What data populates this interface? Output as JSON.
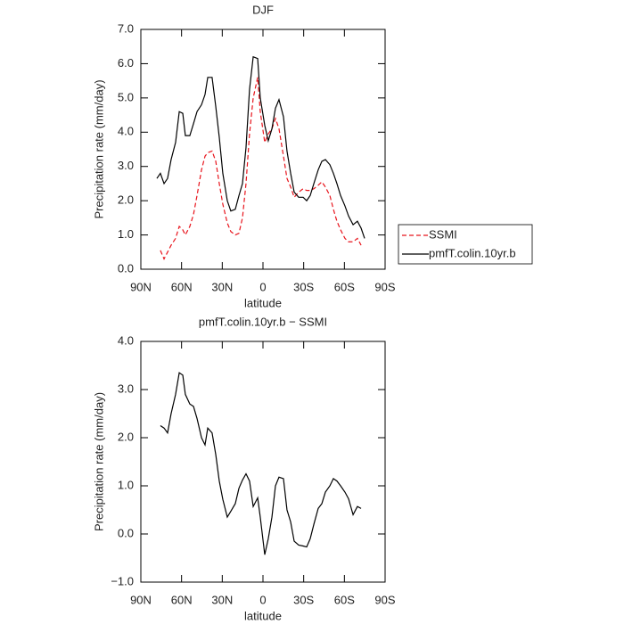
{
  "chart_data": [
    {
      "type": "line",
      "title": "DJF",
      "xlabel": "latitude",
      "ylabel": "Precipitation rate (mm/day)",
      "xlim": [
        90,
        -90
      ],
      "ylim": [
        0,
        7
      ],
      "xticks": [
        {
          "value": 90,
          "label": "90N"
        },
        {
          "value": 60,
          "label": "60N"
        },
        {
          "value": 30,
          "label": "30N"
        },
        0,
        {
          "value": -30,
          "label": "30S"
        },
        {
          "value": -60,
          "label": "60S"
        },
        {
          "value": -90,
          "label": "90S"
        }
      ],
      "yticks": [
        {
          "value": 0,
          "label": "0.0"
        },
        {
          "value": 1,
          "label": "1.0"
        },
        {
          "value": 2,
          "label": "2.0"
        },
        {
          "value": 3,
          "label": "3.0"
        },
        {
          "value": 4,
          "label": "4.0"
        },
        {
          "value": 5,
          "label": "5.0"
        },
        {
          "value": 6,
          "label": "6.0"
        },
        {
          "value": 7,
          "label": "7.0"
        }
      ],
      "legend": "right",
      "x": [
        78.2,
        75.6,
        72.9,
        70.3,
        67.7,
        64.4,
        61.7,
        59.1,
        57.2,
        53.9,
        51.2,
        48.6,
        45.3,
        42.7,
        40.7,
        37.5,
        34.8,
        32.2,
        29.6,
        26.3,
        23.7,
        20.4,
        17.7,
        15.1,
        12.5,
        9.9,
        7.2,
        3.9,
        2.0,
        -1.3,
        -3.9,
        -6.6,
        -9.2,
        -11.8,
        -15.1,
        -17.7,
        -20.4,
        -23.0,
        -26.3,
        -29.6,
        -32.2,
        -34.8,
        -37.5,
        -40.7,
        -43.4,
        -46.0,
        -49.3,
        -51.9,
        -54.5,
        -57.2,
        -60.4,
        -63.1,
        -66.4,
        -69.6,
        -72.3,
        -74.9
      ],
      "series": [
        {
          "name": "SSMI",
          "color": "#e8141c",
          "linestyle": "dashed",
          "values": [
            null,
            0.55,
            0.3,
            0.5,
            0.7,
            0.9,
            1.25,
            1.15,
            1.0,
            1.25,
            1.6,
            2.15,
            2.9,
            3.3,
            3.4,
            3.45,
            3.15,
            2.5,
            1.9,
            1.35,
            1.1,
            1.0,
            1.05,
            1.5,
            2.5,
            3.95,
            5.0,
            5.6,
            4.6,
            3.7,
            3.95,
            4.1,
            4.4,
            4.1,
            3.3,
            2.65,
            2.4,
            2.1,
            2.25,
            2.35,
            2.3,
            2.3,
            2.35,
            2.45,
            2.55,
            2.4,
            2.15,
            1.75,
            1.4,
            1.15,
            0.9,
            0.8,
            0.8,
            0.9,
            0.7,
            null
          ]
        },
        {
          "name": "pmfT.colin.10yr.b",
          "color": "#000000",
          "linestyle": "solid",
          "values": [
            2.65,
            2.8,
            2.5,
            2.65,
            3.2,
            3.7,
            4.6,
            4.55,
            3.9,
            3.9,
            4.25,
            4.6,
            4.8,
            5.1,
            5.6,
            5.6,
            4.75,
            3.85,
            2.8,
            2.0,
            1.7,
            1.75,
            2.15,
            2.5,
            3.55,
            5.25,
            6.2,
            6.15,
            5.0,
            4.2,
            3.75,
            4.1,
            4.7,
            4.95,
            4.45,
            3.45,
            2.8,
            2.25,
            2.1,
            2.1,
            2.0,
            2.15,
            2.5,
            2.9,
            3.15,
            3.2,
            3.05,
            2.8,
            2.5,
            2.15,
            1.85,
            1.55,
            1.3,
            1.4,
            1.2,
            0.9
          ]
        }
      ]
    },
    {
      "type": "line",
      "title": "pmfT.colin.10yr.b − SSMI",
      "xlabel": "latitude",
      "ylabel": "Precipitation rate (mm/day)",
      "xlim": [
        90,
        -90
      ],
      "ylim": [
        -1,
        4
      ],
      "xticks": [
        {
          "value": 90,
          "label": "90N"
        },
        {
          "value": 60,
          "label": "60N"
        },
        {
          "value": 30,
          "label": "30N"
        },
        0,
        {
          "value": -30,
          "label": "30S"
        },
        {
          "value": -60,
          "label": "60S"
        },
        {
          "value": -90,
          "label": "90S"
        }
      ],
      "yticks": [
        {
          "value": -1,
          "label": "−1.0"
        },
        {
          "value": 0,
          "label": "0.0"
        },
        {
          "value": 1,
          "label": "1.0"
        },
        {
          "value": 2,
          "label": "2.0"
        },
        {
          "value": 3,
          "label": "3.0"
        },
        {
          "value": 4,
          "label": "4.0"
        }
      ],
      "x": [
        78.2,
        75.6,
        72.9,
        70.3,
        67.7,
        64.4,
        61.7,
        59.1,
        57.2,
        53.9,
        51.2,
        48.6,
        45.3,
        42.7,
        40.7,
        37.5,
        34.8,
        32.2,
        29.6,
        26.3,
        23.7,
        20.4,
        17.7,
        15.1,
        12.5,
        9.9,
        7.2,
        3.9,
        2.0,
        -1.3,
        -3.9,
        -6.6,
        -9.2,
        -11.8,
        -15.1,
        -17.7,
        -20.4,
        -23.0,
        -26.3,
        -29.6,
        -32.2,
        -34.8,
        -37.5,
        -40.7,
        -43.4,
        -46.0,
        -49.3,
        -51.9,
        -54.5,
        -57.2,
        -60.4,
        -63.1,
        -66.4,
        -69.6,
        -72.3,
        -74.9
      ],
      "series": [
        {
          "color": "#000000",
          "linestyle": "solid",
          "values": [
            null,
            2.25,
            2.2,
            2.1,
            2.5,
            2.9,
            3.35,
            3.3,
            2.9,
            2.7,
            2.65,
            2.4,
            2.0,
            1.85,
            2.2,
            2.1,
            1.65,
            1.1,
            0.72,
            0.35,
            0.47,
            0.63,
            0.95,
            1.12,
            1.25,
            1.1,
            0.57,
            0.75,
            0.35,
            -0.43,
            -0.1,
            0.35,
            1.0,
            1.18,
            1.15,
            0.5,
            0.25,
            -0.15,
            -0.23,
            -0.25,
            -0.27,
            -0.1,
            0.2,
            0.53,
            0.63,
            0.87,
            1.0,
            1.15,
            1.1,
            1.0,
            0.87,
            0.73,
            0.4,
            0.57,
            0.53,
            null
          ]
        }
      ]
    }
  ]
}
